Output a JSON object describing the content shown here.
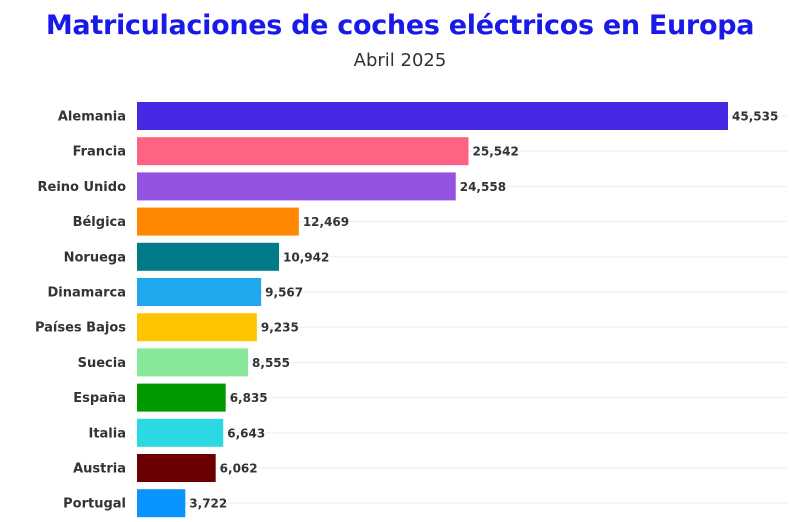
{
  "chart_data": {
    "type": "bar",
    "orientation": "horizontal",
    "title": "Matriculaciones de coches eléctricos en Europa",
    "subtitle": "Abril 2025",
    "xlabel": "",
    "ylabel": "",
    "xlim": [
      0,
      45535
    ],
    "grid": true,
    "categories": [
      "Alemania",
      "Francia",
      "Reino Unido",
      "Bélgica",
      "Noruega",
      "Dinamarca",
      "Países Bajos",
      "Suecia",
      "España",
      "Italia",
      "Austria",
      "Portugal"
    ],
    "values": [
      45535,
      25542,
      24558,
      12469,
      10942,
      9567,
      9235,
      8555,
      6835,
      6643,
      6062,
      3722
    ],
    "value_labels": [
      "45,535",
      "25,542",
      "24,558",
      "12,469",
      "10,942",
      "9,567",
      "9,235",
      "8,555",
      "6,835",
      "6,643",
      "6,062",
      "3,722"
    ],
    "colors": [
      "#4528e4",
      "#ff6384",
      "#9352e0",
      "#ff8800",
      "#007b8a",
      "#1fa9ec",
      "#ffc400",
      "#88e89a",
      "#009a00",
      "#2bd9e2",
      "#6b0000",
      "#0a94ff"
    ]
  }
}
